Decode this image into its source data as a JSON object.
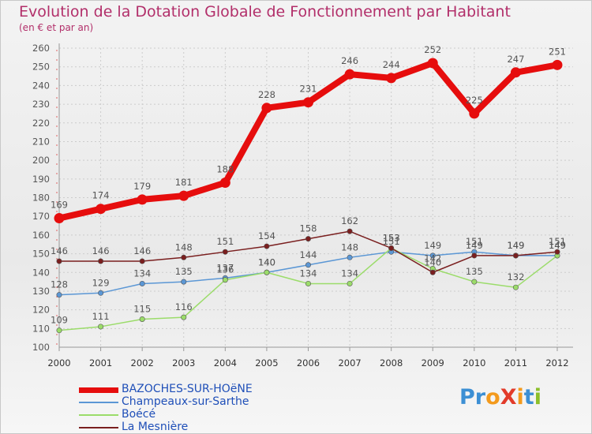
{
  "title": "Evolution de la Dotation Globale de Fonctionnement par Habitant",
  "subtitle": "(en € et par an)",
  "logo": {
    "text": "ProXiti",
    "letters": [
      "P",
      "r",
      "o",
      "X",
      "i",
      "t",
      "i"
    ],
    "colors": [
      "#3c8fd4",
      "#3c8fd4",
      "#f39a1d",
      "#e23b2a",
      "#f39a1d",
      "#3c8fd4",
      "#8cbf2b"
    ]
  },
  "colors": {
    "title": "#b22f6a",
    "axis": "#999999",
    "grid": "#cccccc",
    "label": "#555555"
  },
  "chart_data": {
    "type": "line",
    "title": "Evolution de la Dotation Globale de Fonctionnement par Habitant",
    "subtitle": "(en € et par an)",
    "xlabel": "",
    "ylabel": "",
    "x": [
      "2000",
      "2001",
      "2002",
      "2003",
      "2004",
      "2005",
      "2006",
      "2007",
      "2008",
      "2009",
      "2010",
      "2011",
      "2012"
    ],
    "ylim": [
      100,
      260
    ],
    "yticks": [
      100,
      110,
      120,
      130,
      140,
      150,
      160,
      170,
      180,
      190,
      200,
      210,
      220,
      230,
      240,
      250,
      260
    ],
    "grid": "horizontal",
    "legend_position": "bottom-left",
    "series": [
      {
        "name": "BAZOCHES-SUR-HOëNE",
        "color": "#e60d0d",
        "emphasis": true,
        "values": [
          169,
          174,
          179,
          181,
          188,
          228,
          231,
          246,
          244,
          252,
          225,
          247,
          251
        ],
        "labels": [
          "169",
          "174",
          "179",
          "181",
          "188",
          "228",
          "231",
          "246",
          "244",
          "252",
          "225",
          "247",
          "251"
        ]
      },
      {
        "name": "Champeaux-sur-Sarthe",
        "color": "#5b97d5",
        "emphasis": false,
        "values": [
          128,
          129,
          134,
          135,
          137,
          140,
          144,
          148,
          151,
          149,
          151,
          149,
          149
        ],
        "labels": [
          "128",
          "129",
          "134",
          "135",
          "137",
          "140",
          "144",
          "148",
          "151",
          "149",
          "151",
          "149",
          "149"
        ]
      },
      {
        "name": "Boécé",
        "color": "#9bdc6a",
        "emphasis": false,
        "values": [
          109,
          111,
          115,
          116,
          136,
          140,
          134,
          134,
          153,
          142,
          135,
          132,
          149
        ],
        "labels": [
          "109",
          "111",
          "115",
          "116",
          "136",
          "140",
          "134",
          "134",
          "153",
          "142",
          "135",
          "132",
          "149"
        ]
      },
      {
        "name": "La Mesnière",
        "color": "#7a1f1f",
        "emphasis": false,
        "values": [
          146,
          146,
          146,
          148,
          151,
          154,
          158,
          162,
          153,
          140,
          149,
          149,
          151
        ],
        "labels": [
          "146",
          "146",
          "146",
          "148",
          "151",
          "154",
          "158",
          "162",
          "153",
          "140",
          "149",
          "149",
          "151"
        ]
      }
    ]
  }
}
